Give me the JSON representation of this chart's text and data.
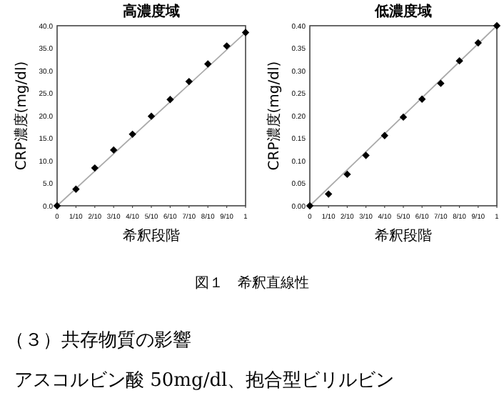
{
  "chart_data": [
    {
      "type": "scatter",
      "title": "高濃度域",
      "xlabel": "希釈段階",
      "ylabel": "CRP濃度(mg/dl)",
      "marker": "diamond",
      "xlim": [
        0,
        1
      ],
      "ylim": [
        0,
        40
      ],
      "xticks": [
        {
          "value": 0,
          "label": "0"
        },
        {
          "value": 0.1,
          "label": "1/10"
        },
        {
          "value": 0.2,
          "label": "2/10"
        },
        {
          "value": 0.3,
          "label": "3/10"
        },
        {
          "value": 0.4,
          "label": "4/10"
        },
        {
          "value": 0.5,
          "label": "5/10"
        },
        {
          "value": 0.6,
          "label": "6/10"
        },
        {
          "value": 0.7,
          "label": "7/10"
        },
        {
          "value": 0.8,
          "label": "8/10"
        },
        {
          "value": 0.9,
          "label": "9/10"
        },
        {
          "value": 1,
          "label": "1"
        }
      ],
      "yticks": [
        {
          "value": 0,
          "label": "0.0"
        },
        {
          "value": 5,
          "label": "5.0"
        },
        {
          "value": 10,
          "label": "10.0"
        },
        {
          "value": 15,
          "label": "15.0"
        },
        {
          "value": 20,
          "label": "20.0"
        },
        {
          "value": 25,
          "label": "25.0"
        },
        {
          "value": 30,
          "label": "30.0"
        },
        {
          "value": 35,
          "label": "35.0"
        },
        {
          "value": 40,
          "label": "40.0"
        }
      ],
      "series": [
        {
          "type": "line",
          "marker": "none",
          "color": "#aaaaaa",
          "x": [
            0,
            1
          ],
          "values": [
            0,
            38.5
          ]
        },
        {
          "color": "#000000",
          "x": [
            0,
            0.1,
            0.2,
            0.3,
            0.4,
            0.5,
            0.6,
            0.7,
            0.8,
            0.9,
            1
          ],
          "values": [
            0,
            3.7,
            8.4,
            12.4,
            15.9,
            19.9,
            23.6,
            27.6,
            31.5,
            35.5,
            38.5
          ]
        }
      ],
      "annotations": [
        "図１　希釈直線性",
        "（３）共存物質の影響",
        "アスコルビン酸 50mg/dl、抱合型ビリルビン"
      ]
    },
    {
      "type": "scatter",
      "title": "低濃度域",
      "xlabel": "希釈段階",
      "ylabel": "CRP濃度(mg/dl)",
      "marker": "diamond",
      "xlim": [
        0,
        1
      ],
      "ylim": [
        0,
        0.4
      ],
      "xticks": [
        {
          "value": 0,
          "label": "0"
        },
        {
          "value": 0.1,
          "label": "1/10"
        },
        {
          "value": 0.2,
          "label": "2/10"
        },
        {
          "value": 0.3,
          "label": "3/10"
        },
        {
          "value": 0.4,
          "label": "4/10"
        },
        {
          "value": 0.5,
          "label": "5/10"
        },
        {
          "value": 0.6,
          "label": "6/10"
        },
        {
          "value": 0.7,
          "label": "7/10"
        },
        {
          "value": 0.8,
          "label": "8/10"
        },
        {
          "value": 0.9,
          "label": "9/10"
        },
        {
          "value": 1,
          "label": "1"
        }
      ],
      "yticks": [
        {
          "value": 0,
          "label": "0.00"
        },
        {
          "value": 0.05,
          "label": "0.05"
        },
        {
          "value": 0.1,
          "label": "0.10"
        },
        {
          "value": 0.15,
          "label": "0.15"
        },
        {
          "value": 0.2,
          "label": "0.20"
        },
        {
          "value": 0.25,
          "label": "0.25"
        },
        {
          "value": 0.3,
          "label": "0.30"
        },
        {
          "value": 0.35,
          "label": "0.35"
        },
        {
          "value": 0.4,
          "label": "0.40"
        }
      ],
      "series": [
        {
          "type": "line",
          "marker": "none",
          "color": "#aaaaaa",
          "x": [
            0,
            1
          ],
          "values": [
            0,
            0.4
          ]
        },
        {
          "color": "#000000",
          "x": [
            0,
            0.1,
            0.2,
            0.3,
            0.4,
            0.5,
            0.6,
            0.7,
            0.8,
            0.9,
            1
          ],
          "values": [
            0,
            0.026,
            0.07,
            0.112,
            0.156,
            0.197,
            0.237,
            0.272,
            0.322,
            0.362,
            0.4
          ]
        }
      ]
    }
  ]
}
